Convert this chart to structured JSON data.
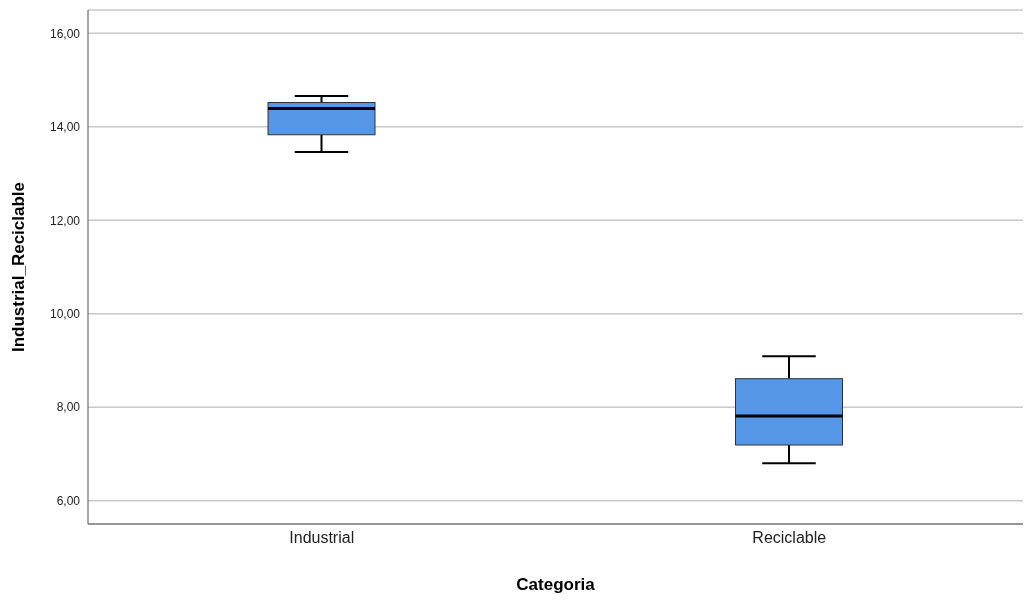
{
  "chart_data": {
    "type": "box",
    "xlabel": "Categoria",
    "ylabel": "Industrial_Reciclable",
    "categories": [
      "Industrial",
      "Reciclable"
    ],
    "boxes": [
      {
        "low": 13.46,
        "q1": 13.83,
        "median": 14.39,
        "q3": 14.52,
        "high": 14.66
      },
      {
        "low": 6.8,
        "q1": 7.19,
        "median": 7.81,
        "q3": 8.61,
        "high": 9.09
      }
    ],
    "color": "#5596e6",
    "ylim": [
      5.5,
      16.5
    ],
    "yticks": [
      {
        "value": 6,
        "label": "6,00"
      },
      {
        "value": 8,
        "label": "8,00"
      },
      {
        "value": 10,
        "label": "10,00"
      },
      {
        "value": 12,
        "label": "12,00"
      },
      {
        "value": 14,
        "label": "14,00"
      },
      {
        "value": 16,
        "label": "16,00"
      }
    ],
    "grid": "y"
  }
}
